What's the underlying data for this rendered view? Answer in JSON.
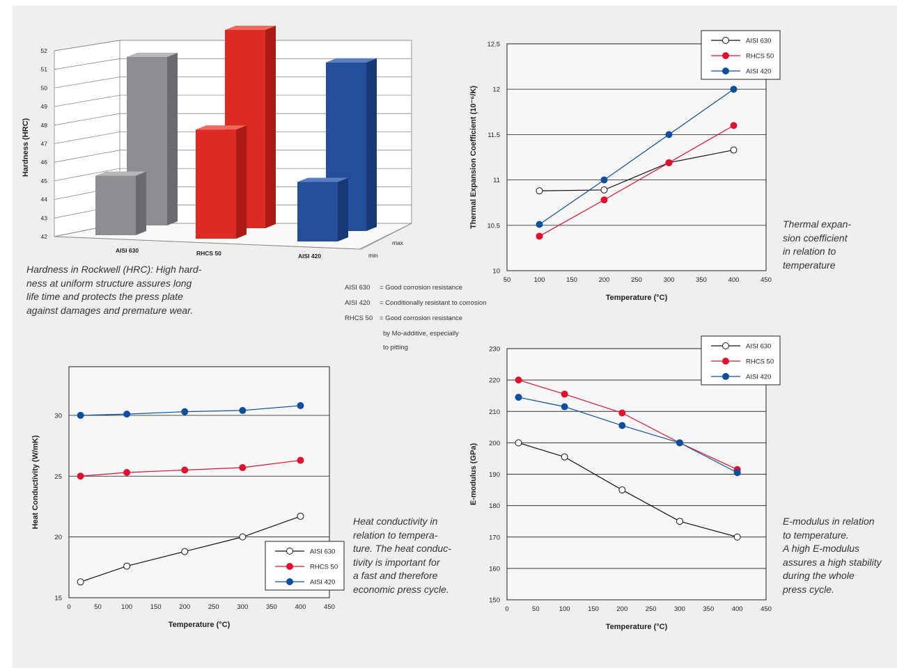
{
  "colors": {
    "aisi630": "#111111",
    "rhcs50": "#e0102e",
    "aisi420": "#0b4f9e",
    "panel": "#efefef"
  },
  "chart_data": [
    {
      "id": "hardness",
      "type": "bar",
      "ylabel": "Hardness (HRC)",
      "ylim": [
        42,
        52
      ],
      "yticks": [
        "42",
        "43",
        "44",
        "45",
        "46",
        "47",
        "48",
        "49",
        "50",
        "51",
        "52"
      ],
      "categories": [
        "AISI 630",
        "RHCS 50",
        "AISI 420"
      ],
      "series": [
        {
          "name": "min",
          "values": [
            45,
            47.5,
            45
          ]
        },
        {
          "name": "max",
          "values": [
            50.5,
            52,
            50.5
          ]
        }
      ],
      "depth_labels": [
        "min",
        "max"
      ]
    },
    {
      "id": "thermal",
      "type": "line",
      "xlabel": "Temperature (°C)",
      "ylabel": "Thermal Expansion Coefficient (10⁻⁶/K)",
      "xlim": [
        50,
        450
      ],
      "ylim": [
        10,
        12.5
      ],
      "xticks": [
        "50",
        "100",
        "150",
        "200",
        "250",
        "300",
        "350",
        "400",
        "450"
      ],
      "yticks": [
        "10",
        "10.5",
        "11",
        "11.5",
        "12",
        "12.5"
      ],
      "series": [
        {
          "name": "AISI 630",
          "x": [
            100,
            200,
            300,
            400
          ],
          "y": [
            10.88,
            10.89,
            11.19,
            11.33
          ]
        },
        {
          "name": "RHCS 50",
          "x": [
            100,
            200,
            300,
            400
          ],
          "y": [
            10.38,
            10.78,
            11.19,
            11.6
          ]
        },
        {
          "name": "AISI 420",
          "x": [
            100,
            200,
            300,
            400
          ],
          "y": [
            10.51,
            11.0,
            11.5,
            12.0
          ]
        }
      ]
    },
    {
      "id": "conductivity",
      "type": "line",
      "xlabel": "Temperature (°C)",
      "ylabel": "Heat Conductivity (W/mK)",
      "xlim": [
        0,
        450
      ],
      "ylim": [
        15,
        34
      ],
      "xticks": [
        "0",
        "50",
        "100",
        "150",
        "200",
        "250",
        "300",
        "350",
        "400",
        "450"
      ],
      "yticks": [
        "15",
        "20",
        "25",
        "30"
      ],
      "series": [
        {
          "name": "AISI 630",
          "x": [
            20,
            100,
            200,
            300,
            400
          ],
          "y": [
            16.3,
            17.6,
            18.8,
            20.0,
            21.7
          ]
        },
        {
          "name": "RHCS 50",
          "x": [
            20,
            100,
            200,
            300,
            400
          ],
          "y": [
            25.0,
            25.3,
            25.5,
            25.7,
            26.3
          ]
        },
        {
          "name": "AISI 420",
          "x": [
            20,
            100,
            200,
            300,
            400
          ],
          "y": [
            30.0,
            30.1,
            30.3,
            30.4,
            30.8
          ]
        }
      ]
    },
    {
      "id": "emodulus",
      "type": "line",
      "xlabel": "Temperature (°C)",
      "ylabel": "E-modulus (GPa)",
      "xlim": [
        0,
        450
      ],
      "ylim": [
        150,
        230
      ],
      "xticks": [
        "0",
        "50",
        "100",
        "150",
        "200",
        "250",
        "300",
        "350",
        "400",
        "450"
      ],
      "yticks": [
        "150",
        "160",
        "170",
        "180",
        "190",
        "200",
        "210",
        "220",
        "230"
      ],
      "series": [
        {
          "name": "AISI 630",
          "x": [
            20,
            100,
            200,
            300,
            400
          ],
          "y": [
            200,
            195.5,
            185,
            175,
            170
          ]
        },
        {
          "name": "RHCS 50",
          "x": [
            20,
            100,
            200,
            300,
            400
          ],
          "y": [
            220,
            215.5,
            209.5,
            200,
            191.5
          ]
        },
        {
          "name": "AISI 420",
          "x": [
            20,
            100,
            200,
            300,
            400
          ],
          "y": [
            214.5,
            211.5,
            205.5,
            200,
            190.5
          ]
        }
      ]
    }
  ],
  "captions": {
    "hardness": [
      "Hardness in Rockwell (HRC): High hard-",
      "ness at uniform structure assures long",
      "life time and protects the press plate",
      "against damages and premature wear."
    ],
    "thermal": [
      "Thermal expan-",
      "sion coefficient",
      "in relation to",
      "temperature"
    ],
    "conductivity": [
      "Heat conductivity in",
      "relation to tempera-",
      "ture. The heat conduc-",
      "tivity is important for",
      "a fast and therefore",
      "economic press cycle."
    ],
    "emodulus": [
      "E-modulus in relation",
      "to temperature.",
      "A high E-modulus",
      "assures a high stability",
      "during the whole",
      "press cycle."
    ]
  },
  "notes": [
    {
      "abbr": "AISI 630",
      "text": "= Good corrosion resistance"
    },
    {
      "abbr": "AISI 420",
      "text": "= Conditionally resistant to corrosion"
    },
    {
      "abbr": "RHCS 50",
      "text": "= Good corrosion resistance"
    }
  ],
  "notes_continuation": [
    "by Mo-additive, especially",
    "to pitting"
  ]
}
